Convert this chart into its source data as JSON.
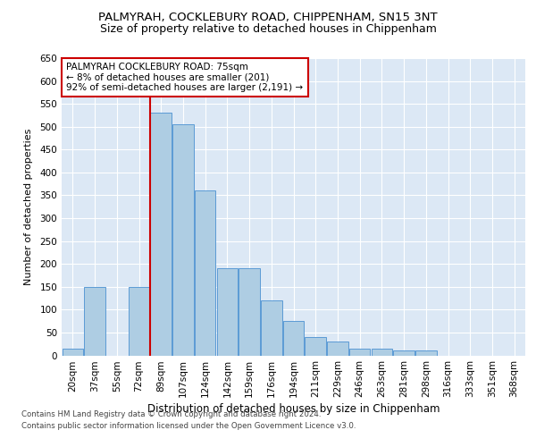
{
  "title_line1": "PALMYRAH, COCKLEBURY ROAD, CHIPPENHAM, SN15 3NT",
  "title_line2": "Size of property relative to detached houses in Chippenham",
  "xlabel": "Distribution of detached houses by size in Chippenham",
  "ylabel": "Number of detached properties",
  "categories": [
    "20sqm",
    "37sqm",
    "55sqm",
    "72sqm",
    "89sqm",
    "107sqm",
    "124sqm",
    "142sqm",
    "159sqm",
    "176sqm",
    "194sqm",
    "211sqm",
    "229sqm",
    "246sqm",
    "263sqm",
    "281sqm",
    "298sqm",
    "316sqm",
    "333sqm",
    "351sqm",
    "368sqm"
  ],
  "values": [
    15,
    150,
    0,
    150,
    530,
    505,
    360,
    190,
    190,
    120,
    75,
    40,
    30,
    15,
    15,
    10,
    10,
    0,
    0,
    0,
    0
  ],
  "bar_color": "#aecde3",
  "bar_edge_color": "#5b9bd5",
  "vline_color": "#cc0000",
  "vline_index": 3.5,
  "annotation_text": "PALMYRAH COCKLEBURY ROAD: 75sqm\n← 8% of detached houses are smaller (201)\n92% of semi-detached houses are larger (2,191) →",
  "annotation_box_color": "#ffffff",
  "annotation_box_edge": "#cc0000",
  "ylim": [
    0,
    650
  ],
  "yticks": [
    0,
    50,
    100,
    150,
    200,
    250,
    300,
    350,
    400,
    450,
    500,
    550,
    600,
    650
  ],
  "footer_line1": "Contains HM Land Registry data © Crown copyright and database right 2024.",
  "footer_line2": "Contains public sector information licensed under the Open Government Licence v3.0.",
  "bg_color": "#dce8f5",
  "fig_bg_color": "#ffffff",
  "title_fontsize": 9.5,
  "subtitle_fontsize": 9,
  "ylabel_fontsize": 8,
  "xlabel_fontsize": 8.5,
  "tick_fontsize": 7.5,
  "annot_fontsize": 7.5,
  "footer_fontsize": 6.2
}
